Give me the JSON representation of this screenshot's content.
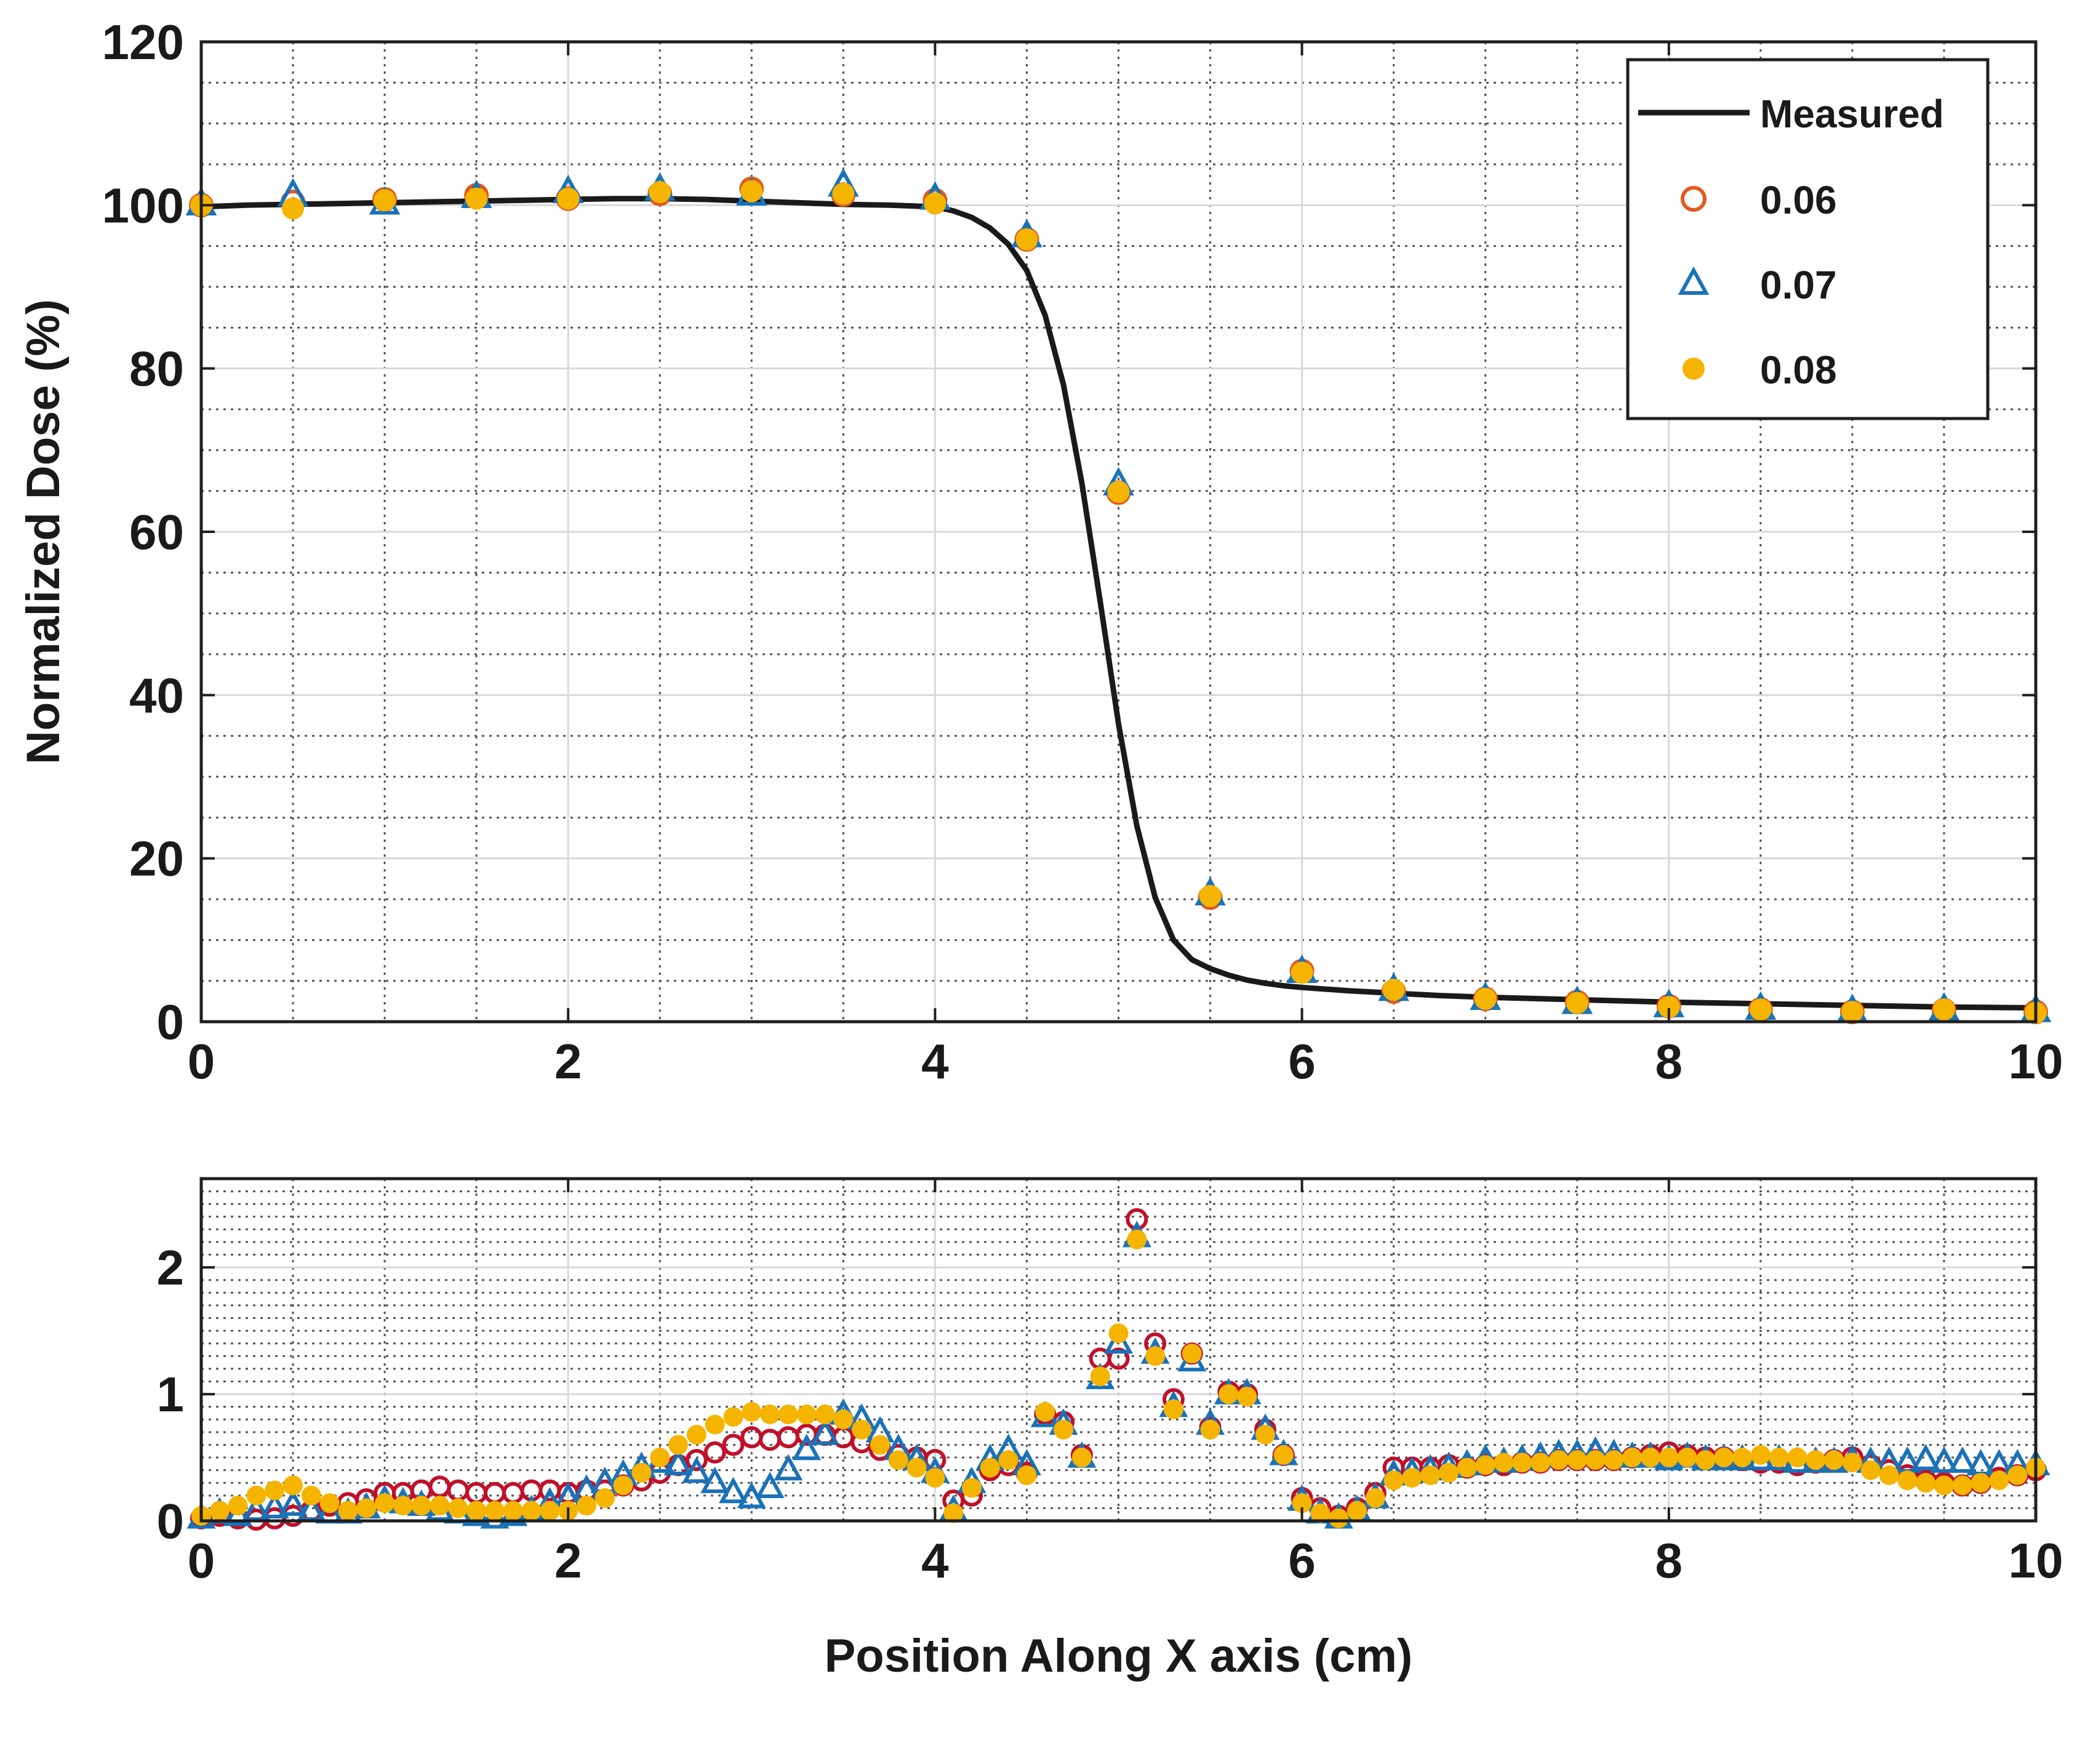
{
  "chart_data": [
    {
      "type": "line",
      "panel": "top",
      "title": "",
      "xlabel": "",
      "ylabel": "Normalized Dose (%)",
      "xlim": [
        0,
        10
      ],
      "ylim": [
        0,
        120
      ],
      "xticks": [
        "0",
        "2",
        "4",
        "6",
        "8",
        "10"
      ],
      "yticks": [
        "0",
        "20",
        "40",
        "60",
        "80",
        "100",
        "120"
      ],
      "xtick_values": [
        0,
        2,
        4,
        6,
        8,
        10
      ],
      "ytick_values": [
        0,
        20,
        40,
        60,
        80,
        100,
        120
      ],
      "grid": true,
      "legend_position": "top-right",
      "legend": {
        "measured_label": "Measured",
        "s1_label": "0.06",
        "s2_label": "0.07",
        "s3_label": "0.08"
      },
      "measured": {
        "name": "Measured",
        "color": "#1a1a1a",
        "x": [
          0,
          0.25,
          0.5,
          0.75,
          1,
          1.25,
          1.5,
          1.75,
          2,
          2.25,
          2.5,
          2.75,
          3,
          3.25,
          3.5,
          3.75,
          4,
          4.1,
          4.2,
          4.3,
          4.4,
          4.5,
          4.6,
          4.7,
          4.8,
          4.9,
          5,
          5.1,
          5.2,
          5.3,
          5.4,
          5.5,
          5.6,
          5.7,
          5.8,
          5.9,
          6,
          6.25,
          6.5,
          6.75,
          7,
          7.5,
          8,
          8.5,
          9,
          9.5,
          10
        ],
        "y": [
          99.8,
          100,
          100.1,
          100.2,
          100.3,
          100.4,
          100.5,
          100.6,
          100.7,
          100.8,
          100.8,
          100.7,
          100.5,
          100.3,
          100.1,
          100,
          99.8,
          99.3,
          98.5,
          97.2,
          95.2,
          92,
          86.5,
          78,
          66,
          51.5,
          36.5,
          24,
          15.2,
          10,
          7.6,
          6.5,
          5.7,
          5.1,
          4.7,
          4.4,
          4.2,
          3.8,
          3.5,
          3.2,
          3.0,
          2.7,
          2.4,
          2.2,
          2.0,
          1.8,
          1.7
        ]
      },
      "series": [
        {
          "name": "0.06",
          "marker": "circle-open",
          "color": "#e05a1e",
          "x": [
            0,
            0.5,
            1,
            1.5,
            2,
            2.5,
            3,
            3.5,
            4,
            4.5,
            5,
            5.5,
            6,
            6.5,
            7,
            7.5,
            8,
            8.5,
            9,
            9.5,
            10
          ],
          "y": [
            100,
            100.4,
            100.7,
            101.2,
            100.8,
            101.4,
            102,
            101.3,
            100.6,
            95.8,
            64.8,
            15.2,
            6.2,
            3.7,
            2.8,
            2.4,
            1.9,
            1.5,
            1.2,
            1.4,
            1.2
          ]
        },
        {
          "name": "0.07",
          "marker": "triangle-open",
          "color": "#1a72b8",
          "x": [
            0,
            0.5,
            1,
            1.5,
            2,
            2.5,
            3,
            3.5,
            4,
            4.5,
            5,
            5.5,
            6,
            6.5,
            7,
            7.5,
            8,
            8.5,
            9,
            9.5,
            10
          ],
          "y": [
            100.1,
            101.2,
            100.2,
            101,
            101.6,
            101.9,
            101.3,
            102.4,
            100.8,
            96.2,
            65.8,
            15.6,
            6.1,
            3.9,
            2.8,
            2.3,
            1.9,
            1.6,
            1.3,
            1.5,
            1.3
          ]
        },
        {
          "name": "0.08",
          "marker": "dot-filled",
          "color": "#f5b400",
          "x": [
            0,
            0.5,
            1,
            1.5,
            2,
            2.5,
            3,
            3.5,
            4,
            4.5,
            5,
            5.5,
            6,
            6.5,
            7,
            7.5,
            8,
            8.5,
            9,
            9.5,
            10
          ],
          "y": [
            100,
            99.6,
            100.6,
            100.8,
            100.8,
            101.6,
            101.7,
            101.4,
            100.2,
            95.8,
            64.9,
            15.4,
            6,
            3.9,
            2.8,
            2.3,
            1.8,
            1.5,
            1.2,
            1.5,
            1.1
          ]
        }
      ]
    },
    {
      "type": "scatter",
      "panel": "bottom",
      "title": "",
      "xlabel": "Position Along X axis (cm)",
      "ylabel": "",
      "xlim": [
        0,
        10
      ],
      "ylim": [
        0,
        2.7
      ],
      "xticks": [
        "0",
        "2",
        "4",
        "6",
        "8",
        "10"
      ],
      "yticks": [
        "0",
        "1",
        "2"
      ],
      "xtick_values": [
        0,
        2,
        4,
        6,
        8,
        10
      ],
      "ytick_values": [
        0,
        1,
        2
      ],
      "grid": true,
      "series": [
        {
          "name": "0.06",
          "marker": "circle-open",
          "color": "#c0102a",
          "x": [
            0,
            0.1,
            0.2,
            0.3,
            0.4,
            0.5,
            0.6,
            0.7,
            0.8,
            0.9,
            1,
            1.1,
            1.2,
            1.3,
            1.4,
            1.5,
            1.6,
            1.7,
            1.8,
            1.9,
            2,
            2.1,
            2.2,
            2.3,
            2.4,
            2.5,
            2.6,
            2.7,
            2.8,
            2.9,
            3,
            3.1,
            3.2,
            3.3,
            3.4,
            3.5,
            3.6,
            3.7,
            3.8,
            3.9,
            4,
            4.1,
            4.2,
            4.3,
            4.4,
            4.5,
            4.6,
            4.7,
            4.8,
            4.9,
            5,
            5.1,
            5.2,
            5.3,
            5.4,
            5.5,
            5.6,
            5.7,
            5.8,
            5.9,
            6,
            6.1,
            6.2,
            6.3,
            6.4,
            6.5,
            6.6,
            6.7,
            6.8,
            6.9,
            7,
            7.1,
            7.2,
            7.3,
            7.4,
            7.5,
            7.6,
            7.7,
            7.8,
            7.9,
            8,
            8.1,
            8.2,
            8.3,
            8.4,
            8.5,
            8.6,
            8.7,
            8.8,
            8.9,
            9,
            9.1,
            9.2,
            9.3,
            9.4,
            9.5,
            9.6,
            9.7,
            9.8,
            9.9,
            10
          ],
          "y": [
            0.02,
            0.04,
            0.02,
            0.01,
            0.02,
            0.04,
            0.08,
            0.12,
            0.14,
            0.17,
            0.22,
            0.22,
            0.24,
            0.27,
            0.24,
            0.22,
            0.22,
            0.22,
            0.24,
            0.24,
            0.22,
            0.24,
            0.24,
            0.28,
            0.32,
            0.38,
            0.44,
            0.48,
            0.54,
            0.6,
            0.66,
            0.64,
            0.66,
            0.68,
            0.68,
            0.66,
            0.62,
            0.56,
            0.52,
            0.5,
            0.48,
            0.16,
            0.2,
            0.4,
            0.44,
            0.38,
            0.84,
            0.78,
            0.52,
            1.28,
            1.28,
            2.38,
            1.4,
            0.96,
            1.32,
            0.74,
            1.02,
            1.0,
            0.72,
            0.52,
            0.18,
            0.1,
            0.04,
            0.1,
            0.22,
            0.42,
            0.42,
            0.42,
            0.44,
            0.42,
            0.44,
            0.44,
            0.46,
            0.46,
            0.48,
            0.48,
            0.48,
            0.48,
            0.5,
            0.52,
            0.54,
            0.52,
            0.5,
            0.5,
            0.48,
            0.46,
            0.46,
            0.44,
            0.46,
            0.48,
            0.5,
            0.44,
            0.4,
            0.36,
            0.32,
            0.3,
            0.28,
            0.3,
            0.34,
            0.36,
            0.4
          ]
        },
        {
          "name": "0.07",
          "marker": "triangle-open",
          "color": "#1a72b8",
          "x": [
            0,
            0.1,
            0.2,
            0.3,
            0.4,
            0.5,
            0.6,
            0.7,
            0.8,
            0.9,
            1,
            1.1,
            1.2,
            1.3,
            1.4,
            1.5,
            1.6,
            1.7,
            1.8,
            1.9,
            2,
            2.1,
            2.2,
            2.3,
            2.4,
            2.5,
            2.6,
            2.7,
            2.8,
            2.9,
            3,
            3.1,
            3.2,
            3.3,
            3.4,
            3.5,
            3.6,
            3.7,
            3.8,
            3.9,
            4,
            4.1,
            4.2,
            4.3,
            4.4,
            4.5,
            4.6,
            4.7,
            4.8,
            4.9,
            5,
            5.1,
            5.2,
            5.3,
            5.4,
            5.5,
            5.6,
            5.7,
            5.8,
            5.9,
            6,
            6.1,
            6.2,
            6.3,
            6.4,
            6.5,
            6.6,
            6.7,
            6.8,
            6.9,
            7,
            7.1,
            7.2,
            7.3,
            7.4,
            7.5,
            7.6,
            7.7,
            7.8,
            7.9,
            8,
            8.1,
            8.2,
            8.3,
            8.4,
            8.5,
            8.6,
            8.7,
            8.8,
            8.9,
            9,
            9.1,
            9.2,
            9.3,
            9.4,
            9.5,
            9.6,
            9.7,
            9.8,
            9.9,
            10
          ],
          "y": [
            0.02,
            0.06,
            0.04,
            0.08,
            0.1,
            0.12,
            0.08,
            0.06,
            0.06,
            0.1,
            0.16,
            0.14,
            0.12,
            0.08,
            0.06,
            0.04,
            0.02,
            0.04,
            0.08,
            0.14,
            0.18,
            0.24,
            0.3,
            0.36,
            0.42,
            0.46,
            0.44,
            0.38,
            0.3,
            0.22,
            0.18,
            0.26,
            0.4,
            0.56,
            0.68,
            0.84,
            0.8,
            0.7,
            0.56,
            0.48,
            0.38,
            0.08,
            0.3,
            0.48,
            0.56,
            0.44,
            0.82,
            0.76,
            0.5,
            1.12,
            1.4,
            2.24,
            1.32,
            0.9,
            1.26,
            0.76,
            1.0,
            1.0,
            0.72,
            0.52,
            0.16,
            0.06,
            0.02,
            0.08,
            0.18,
            0.36,
            0.38,
            0.4,
            0.42,
            0.44,
            0.48,
            0.46,
            0.48,
            0.5,
            0.52,
            0.52,
            0.54,
            0.52,
            0.5,
            0.5,
            0.48,
            0.5,
            0.48,
            0.48,
            0.48,
            0.48,
            0.48,
            0.46,
            0.46,
            0.46,
            0.48,
            0.46,
            0.46,
            0.46,
            0.48,
            0.46,
            0.46,
            0.44,
            0.44,
            0.44,
            0.44
          ]
        },
        {
          "name": "0.08",
          "marker": "dot-filled",
          "color": "#f5b400",
          "x": [
            0,
            0.1,
            0.2,
            0.3,
            0.4,
            0.5,
            0.6,
            0.7,
            0.8,
            0.9,
            1,
            1.1,
            1.2,
            1.3,
            1.4,
            1.5,
            1.6,
            1.7,
            1.8,
            1.9,
            2,
            2.1,
            2.2,
            2.3,
            2.4,
            2.5,
            2.6,
            2.7,
            2.8,
            2.9,
            3,
            3.1,
            3.2,
            3.3,
            3.4,
            3.5,
            3.6,
            3.7,
            3.8,
            3.9,
            4,
            4.1,
            4.2,
            4.3,
            4.4,
            4.5,
            4.6,
            4.7,
            4.8,
            4.9,
            5,
            5.1,
            5.2,
            5.3,
            5.4,
            5.5,
            5.6,
            5.7,
            5.8,
            5.9,
            6,
            6.1,
            6.2,
            6.3,
            6.4,
            6.5,
            6.6,
            6.7,
            6.8,
            6.9,
            7,
            7.1,
            7.2,
            7.3,
            7.4,
            7.5,
            7.6,
            7.7,
            7.8,
            7.9,
            8,
            8.1,
            8.2,
            8.3,
            8.4,
            8.5,
            8.6,
            8.7,
            8.8,
            8.9,
            9,
            9.1,
            9.2,
            9.3,
            9.4,
            9.5,
            9.6,
            9.7,
            9.8,
            9.9,
            10
          ],
          "y": [
            0.04,
            0.08,
            0.12,
            0.2,
            0.24,
            0.28,
            0.2,
            0.14,
            0.08,
            0.1,
            0.14,
            0.12,
            0.12,
            0.12,
            0.1,
            0.08,
            0.08,
            0.08,
            0.08,
            0.08,
            0.08,
            0.12,
            0.18,
            0.28,
            0.38,
            0.5,
            0.6,
            0.68,
            0.76,
            0.82,
            0.86,
            0.84,
            0.84,
            0.84,
            0.84,
            0.8,
            0.72,
            0.6,
            0.48,
            0.42,
            0.34,
            0.06,
            0.26,
            0.42,
            0.48,
            0.36,
            0.86,
            0.72,
            0.5,
            1.14,
            1.48,
            2.22,
            1.3,
            0.88,
            1.32,
            0.72,
            1.0,
            0.98,
            0.68,
            0.52,
            0.14,
            0.06,
            0.02,
            0.08,
            0.18,
            0.32,
            0.34,
            0.36,
            0.38,
            0.42,
            0.44,
            0.46,
            0.46,
            0.46,
            0.48,
            0.48,
            0.48,
            0.48,
            0.5,
            0.5,
            0.5,
            0.5,
            0.48,
            0.5,
            0.5,
            0.52,
            0.5,
            0.5,
            0.48,
            0.48,
            0.46,
            0.4,
            0.36,
            0.32,
            0.3,
            0.28,
            0.28,
            0.3,
            0.32,
            0.36,
            0.42
          ]
        }
      ]
    }
  ]
}
